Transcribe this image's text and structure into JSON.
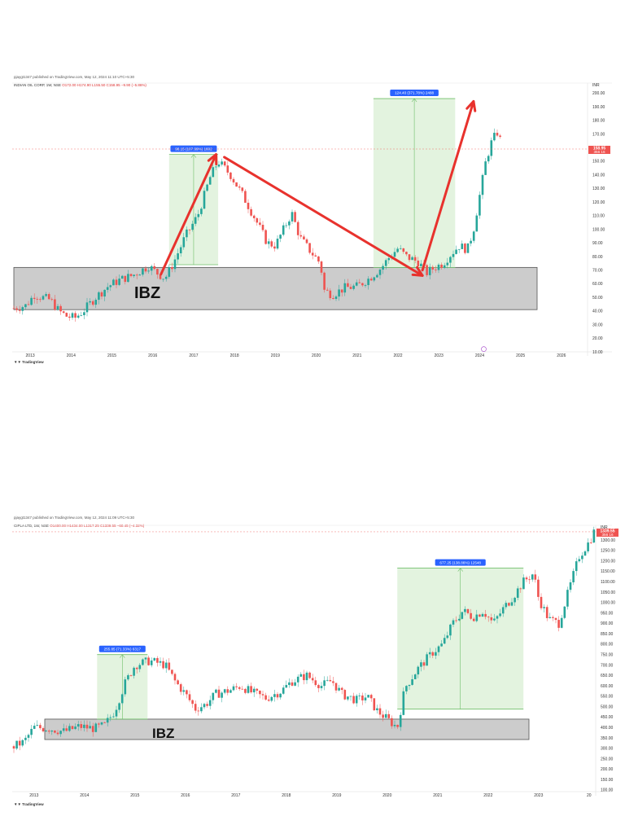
{
  "charts": [
    {
      "id": "chart1",
      "published": "pjaygt1347 published on TradingView.com, May 12, 2024 11:10 UTC+5:30",
      "symbol_line": {
        "name": "INDIAN OIL CORP, 1W, NSE",
        "ohlc": "O172.00 H174.90 L155.50 C158.95 −9.90 (−5.86%)"
      },
      "currency": "INR",
      "zone_label": "IBZ",
      "measure_label": "98.15 (107.99%) 1602",
      "measure2_label": "124.40 (371.78%) 2488",
      "price_tag": "158.95",
      "price_tag_sub": "356 16",
      "logo": "TradingView",
      "zone_color": "#cccccc",
      "arrow_color": "#e8322d",
      "up_color": "#26a69a",
      "down_color": "#ef5350",
      "chart_data": {
        "type": "candlestick",
        "x_ticks": [
          "2013",
          "2014",
          "2015",
          "2016",
          "2017",
          "2018",
          "2019",
          "2020",
          "2021",
          "2022",
          "2023",
          "2024",
          "2025",
          "2026"
        ],
        "y_ticks": [
          "200.00",
          "190.00",
          "180.00",
          "170.00",
          "160.00",
          "150.00",
          "140.00",
          "130.00",
          "120.00",
          "110.00",
          "100.00",
          "90.00",
          "80.00",
          "70.00",
          "60.00",
          "50.00",
          "40.00",
          "30.00",
          "20.00",
          "10.00"
        ],
        "ylim": [
          10,
          205
        ],
        "xlim": [
          2012.6,
          2026.6
        ],
        "zone": {
          "low": 41,
          "high": 72
        },
        "measure": {
          "x0": 2016.4,
          "x1": 2017.6,
          "y0": 74,
          "y1": 155
        },
        "measure2": {
          "x0": 2021.4,
          "x1": 2023.4,
          "y0": 72,
          "y1": 196
        },
        "current_price": 158.95,
        "arrows": [
          {
            "x0": 2016.2,
            "y0": 67,
            "x1": 2017.55,
            "y1": 155
          },
          {
            "x0": 2017.75,
            "y0": 153,
            "x1": 2022.6,
            "y1": 66
          },
          {
            "x0": 2022.6,
            "y0": 70,
            "x1": 2023.85,
            "y1": 194
          }
        ],
        "path": [
          [
            2012.6,
            42
          ],
          [
            2012.9,
            44
          ],
          [
            2013.1,
            52
          ],
          [
            2013.5,
            48
          ],
          [
            2013.7,
            40
          ],
          [
            2013.9,
            36
          ],
          [
            2014.1,
            35
          ],
          [
            2014.3,
            40
          ],
          [
            2014.6,
            50
          ],
          [
            2014.9,
            58
          ],
          [
            2015.2,
            63
          ],
          [
            2015.5,
            66
          ],
          [
            2015.9,
            73
          ],
          [
            2016.1,
            68
          ],
          [
            2016.3,
            64
          ],
          [
            2016.5,
            75
          ],
          [
            2016.8,
            95
          ],
          [
            2017.1,
            110
          ],
          [
            2017.4,
            138
          ],
          [
            2017.6,
            150
          ],
          [
            2017.9,
            140
          ],
          [
            2018.2,
            125
          ],
          [
            2018.5,
            108
          ],
          [
            2018.8,
            90
          ],
          [
            2019.0,
            88
          ],
          [
            2019.2,
            100
          ],
          [
            2019.4,
            112
          ],
          [
            2019.6,
            94
          ],
          [
            2019.8,
            86
          ],
          [
            2020.1,
            75
          ],
          [
            2020.2,
            55
          ],
          [
            2020.4,
            52
          ],
          [
            2020.7,
            57
          ],
          [
            2021.0,
            58
          ],
          [
            2021.3,
            64
          ],
          [
            2021.6,
            72
          ],
          [
            2021.8,
            80
          ],
          [
            2022.0,
            86
          ],
          [
            2022.2,
            80
          ],
          [
            2022.5,
            76
          ],
          [
            2022.7,
            68
          ],
          [
            2022.9,
            72
          ],
          [
            2023.1,
            75
          ],
          [
            2023.3,
            82
          ],
          [
            2023.5,
            88
          ],
          [
            2023.7,
            85
          ],
          [
            2023.85,
            100
          ],
          [
            2024.0,
            125
          ],
          [
            2024.15,
            150
          ],
          [
            2024.3,
            165
          ],
          [
            2024.45,
            172
          ],
          [
            2024.55,
            160
          ]
        ]
      }
    },
    {
      "id": "chart2",
      "published": "pjaygt1347 published on TradingView.com, May 12, 2024 11:09 UTC+5:30",
      "symbol_line": {
        "name": "CIPLA LTD, 1W, NSE",
        "ohlc": "O1400.00 H1434.00 L1317.25 C1339.55 −60.45 (−4.32%)"
      },
      "currency": "INR",
      "zone_label": "IBZ",
      "measure_label": "255.85 (71.33%) 6317",
      "measure2_label": "677.25 (138.86%) 12548",
      "price_tag": "1339.55",
      "price_tag_sub": "356 16",
      "logo": "TradingView",
      "zone_color": "#cccccc",
      "arrow_color": "#e8322d",
      "up_color": "#26a69a",
      "down_color": "#ef5350",
      "chart_data": {
        "type": "candlestick",
        "x_ticks": [
          "2013",
          "2014",
          "2015",
          "2016",
          "2017",
          "2018",
          "2019",
          "2020",
          "2021",
          "2022",
          "2023",
          "20"
        ],
        "y_ticks": [
          "1300.00",
          "1250.00",
          "1200.00",
          "1150.00",
          "1100.00",
          "1050.00",
          "1000.00",
          "950.00",
          "900.00",
          "850.00",
          "800.00",
          "750.00",
          "700.00",
          "650.00",
          "600.00",
          "550.00",
          "500.00",
          "450.00",
          "400.00",
          "350.00",
          "300.00",
          "250.00",
          "200.00",
          "150.00",
          "100.00"
        ],
        "ylim": [
          80,
          1355
        ],
        "xlim": [
          2012.6,
          2024.1
        ],
        "zone": {
          "low": 342,
          "high": 440
        },
        "measure": {
          "x0": 2014.25,
          "x1": 2015.25,
          "y0": 440,
          "y1": 750
        },
        "measure2": {
          "x0": 2020.2,
          "x1": 2022.7,
          "y0": 488,
          "y1": 1165
        },
        "current_price": 1339.55,
        "arrows": [],
        "path": [
          [
            2012.6,
            310
          ],
          [
            2012.8,
            330
          ],
          [
            2013.0,
            400
          ],
          [
            2013.3,
            395
          ],
          [
            2013.6,
            380
          ],
          [
            2013.9,
            405
          ],
          [
            2014.2,
            395
          ],
          [
            2014.4,
            410
          ],
          [
            2014.6,
            480
          ],
          [
            2014.8,
            610
          ],
          [
            2015.0,
            700
          ],
          [
            2015.3,
            720
          ],
          [
            2015.6,
            700
          ],
          [
            2015.8,
            620
          ],
          [
            2016.0,
            560
          ],
          [
            2016.2,
            490
          ],
          [
            2016.4,
            510
          ],
          [
            2016.6,
            560
          ],
          [
            2016.9,
            580
          ],
          [
            2017.1,
            600
          ],
          [
            2017.3,
            570
          ],
          [
            2017.6,
            540
          ],
          [
            2017.9,
            575
          ],
          [
            2018.1,
            620
          ],
          [
            2018.4,
            650
          ],
          [
            2018.7,
            600
          ],
          [
            2018.9,
            625
          ],
          [
            2019.1,
            560
          ],
          [
            2019.4,
            530
          ],
          [
            2019.6,
            550
          ],
          [
            2019.8,
            480
          ],
          [
            2020.0,
            440
          ],
          [
            2020.2,
            400
          ],
          [
            2020.35,
            590
          ],
          [
            2020.6,
            680
          ],
          [
            2020.9,
            760
          ],
          [
            2021.1,
            800
          ],
          [
            2021.3,
            900
          ],
          [
            2021.5,
            960
          ],
          [
            2021.7,
            930
          ],
          [
            2021.9,
            960
          ],
          [
            2022.1,
            900
          ],
          [
            2022.3,
            970
          ],
          [
            2022.5,
            1030
          ],
          [
            2022.7,
            1100
          ],
          [
            2022.9,
            1140
          ],
          [
            2023.0,
            1020
          ],
          [
            2023.2,
            920
          ],
          [
            2023.4,
            900
          ],
          [
            2023.6,
            1060
          ],
          [
            2023.8,
            1220
          ],
          [
            2024.0,
            1290
          ],
          [
            2024.1,
            1340
          ]
        ]
      }
    }
  ]
}
